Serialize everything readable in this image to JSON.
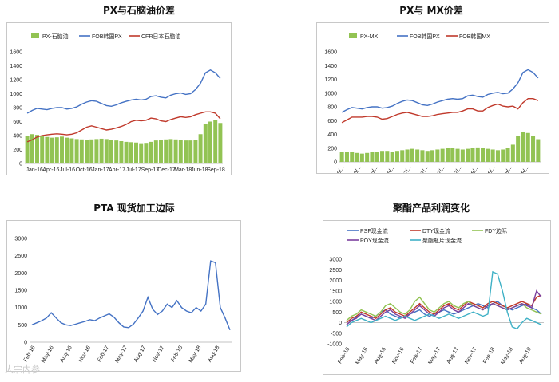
{
  "watermark": "大宗内参",
  "chart_data": [
    {
      "type": "line",
      "title": "PX与石脑油价差",
      "ylim": [
        0,
        1600
      ],
      "yticks": [
        0,
        200,
        400,
        600,
        800,
        1000,
        1200,
        1400,
        1600
      ],
      "xticks": [
        "Jan-16",
        "Apr-16",
        "Jul-16",
        "Oct-16",
        "Jan-17",
        "Apr-17",
        "Jul-17",
        "Sep-17",
        "Dec-17",
        "Mar-18",
        "Jun-18",
        "Sep-18"
      ],
      "legend": [
        "PX-石脑油",
        "FOB韩国PX",
        "CFR日本石脑油"
      ],
      "series": [
        {
          "name": "PX-石脑油",
          "kind": "bar",
          "color": "#92c353",
          "values": [
            400,
            420,
            410,
            390,
            380,
            370,
            375,
            385,
            370,
            360,
            350,
            345,
            340,
            345,
            350,
            355,
            350,
            340,
            330,
            320,
            310,
            305,
            300,
            290,
            295,
            310,
            330,
            340,
            345,
            350,
            345,
            340,
            330,
            330,
            340,
            420,
            560,
            600,
            620,
            580
          ]
        },
        {
          "name": "FOB韩国PX",
          "kind": "line",
          "color": "#4472c4",
          "values": [
            720,
            760,
            790,
            780,
            770,
            790,
            800,
            800,
            780,
            790,
            810,
            850,
            880,
            900,
            890,
            860,
            830,
            820,
            840,
            870,
            890,
            910,
            920,
            910,
            920,
            960,
            970,
            950,
            940,
            980,
            1000,
            1010,
            990,
            1000,
            1060,
            1150,
            1300,
            1340,
            1300,
            1220
          ]
        },
        {
          "name": "CFR日本石脑油",
          "kind": "line",
          "color": "#c0392b",
          "values": [
            310,
            340,
            380,
            400,
            410,
            420,
            425,
            420,
            410,
            420,
            440,
            480,
            520,
            540,
            520,
            500,
            480,
            490,
            510,
            530,
            560,
            600,
            620,
            610,
            620,
            650,
            640,
            610,
            600,
            630,
            650,
            670,
            660,
            670,
            700,
            720,
            740,
            740,
            720,
            640
          ]
        }
      ]
    },
    {
      "type": "line",
      "title": "PX与 MX价差",
      "ylim": [
        0,
        1600
      ],
      "yticks": [
        0,
        200,
        400,
        600,
        800,
        1000,
        1200,
        1400,
        1600
      ],
      "xticks": [
        "16/...",
        "16/...",
        "16/...",
        "16/...",
        "17/...",
        "17/...",
        "17/...",
        "17/...",
        "18/...",
        "18/...",
        "18/...",
        "18/..."
      ],
      "legend": [
        "PX-MX",
        "FOB韩国PX",
        "FOB韩国MX"
      ],
      "series": [
        {
          "name": "PX-MX",
          "kind": "bar",
          "color": "#92c353",
          "values": [
            150,
            150,
            140,
            130,
            120,
            130,
            140,
            150,
            160,
            160,
            150,
            160,
            170,
            180,
            190,
            180,
            170,
            160,
            170,
            180,
            190,
            200,
            200,
            190,
            180,
            190,
            200,
            210,
            200,
            190,
            180,
            170,
            180,
            200,
            250,
            380,
            440,
            420,
            380,
            330
          ]
        },
        {
          "name": "FOB韩国PX",
          "kind": "line",
          "color": "#4472c4",
          "values": [
            720,
            760,
            790,
            780,
            770,
            790,
            800,
            800,
            780,
            790,
            810,
            850,
            880,
            900,
            890,
            860,
            830,
            820,
            840,
            870,
            890,
            910,
            920,
            910,
            920,
            960,
            970,
            950,
            940,
            980,
            1000,
            1010,
            990,
            1000,
            1060,
            1150,
            1300,
            1340,
            1300,
            1220
          ]
        },
        {
          "name": "FOB韩国MX",
          "kind": "line",
          "color": "#c0392b",
          "values": [
            570,
            610,
            650,
            650,
            650,
            660,
            660,
            650,
            620,
            630,
            660,
            690,
            710,
            720,
            700,
            680,
            660,
            660,
            670,
            690,
            700,
            710,
            720,
            720,
            740,
            770,
            770,
            740,
            740,
            790,
            820,
            840,
            810,
            800,
            810,
            770,
            860,
            920,
            920,
            890
          ]
        }
      ]
    },
    {
      "type": "line",
      "title": "PTA 现货加工边际",
      "ylim": [
        0,
        3000
      ],
      "yticks": [
        0,
        500,
        1000,
        1500,
        2000,
        2500,
        3000
      ],
      "xticks": [
        "Feb-16",
        "May-16",
        "Aug-16",
        "Nov-16",
        "Feb-17",
        "May-17",
        "Aug-17",
        "Nov-17",
        "Feb-18",
        "May-18",
        "Aug-18"
      ],
      "legend": [],
      "series": [
        {
          "name": "",
          "kind": "line",
          "color": "#4472c4",
          "values": [
            500,
            560,
            620,
            700,
            850,
            700,
            560,
            500,
            480,
            520,
            560,
            600,
            650,
            620,
            700,
            760,
            820,
            720,
            560,
            440,
            420,
            520,
            700,
            900,
            1300,
            950,
            800,
            900,
            1100,
            1000,
            1200,
            1000,
            900,
            850,
            1000,
            900,
            1100,
            2350,
            2300,
            1000,
            700,
            350
          ]
        }
      ]
    },
    {
      "type": "line",
      "title": "聚酯产品利润变化",
      "ylim": [
        -1000,
        3000
      ],
      "yticks": [
        -1000,
        -500,
        0,
        500,
        1000,
        1500,
        2000,
        2500,
        3000
      ],
      "xticks": [
        "Feb-16",
        "May-16",
        "Aug-16",
        "Nov-16",
        "Feb-17",
        "May-17",
        "Aug-17",
        "Nov-17",
        "Feb-18",
        "May-18",
        "Aug-18"
      ],
      "legend": [
        "PSF现金流",
        "DTY现金流",
        "FDY边际",
        "POY现金流",
        "聚酯瓶片现金流"
      ],
      "series": [
        {
          "name": "PSF现金流",
          "kind": "line",
          "color": "#4472c4",
          "values": [
            50,
            100,
            250,
            400,
            300,
            200,
            300,
            500,
            600,
            400,
            300,
            200,
            300,
            400,
            500,
            600,
            400,
            300,
            400,
            500,
            600,
            500,
            400,
            500,
            600,
            700,
            800,
            900,
            800,
            700,
            900,
            1000,
            800,
            700,
            600,
            700,
            800,
            900,
            700,
            600,
            400
          ]
        },
        {
          "name": "DTY现金流",
          "kind": "line",
          "color": "#c0392b",
          "values": [
            0,
            200,
            300,
            500,
            400,
            300,
            200,
            400,
            600,
            700,
            500,
            400,
            300,
            500,
            700,
            900,
            700,
            500,
            400,
            600,
            800,
            900,
            700,
            600,
            800,
            1000,
            900,
            800,
            700,
            900,
            1000,
            900,
            800,
            700,
            800,
            900,
            1000,
            900,
            800,
            1200,
            1300
          ]
        },
        {
          "name": "FDY边际",
          "kind": "line",
          "color": "#92c353",
          "values": [
            100,
            300,
            400,
            600,
            500,
            400,
            300,
            500,
            800,
            900,
            700,
            500,
            400,
            600,
            1000,
            1200,
            900,
            600,
            500,
            700,
            900,
            1000,
            800,
            700,
            900,
            1000,
            800,
            700,
            600,
            800,
            900,
            800,
            700,
            600,
            700,
            800,
            900,
            700,
            600,
            500,
            400
          ]
        },
        {
          "name": "POY现金流",
          "kind": "line",
          "color": "#7b3f9e",
          "values": [
            -100,
            100,
            200,
            400,
            300,
            200,
            100,
            300,
            500,
            600,
            400,
            300,
            200,
            400,
            600,
            800,
            600,
            400,
            300,
            500,
            700,
            800,
            600,
            500,
            700,
            900,
            800,
            700,
            600,
            800,
            900,
            800,
            700,
            600,
            700,
            800,
            900,
            800,
            700,
            1500,
            1200
          ]
        },
        {
          "name": "聚酯瓶片现金流",
          "kind": "line",
          "color": "#3fb1c6",
          "values": [
            -200,
            0,
            100,
            200,
            100,
            0,
            100,
            200,
            300,
            200,
            100,
            200,
            300,
            200,
            100,
            200,
            300,
            400,
            300,
            200,
            300,
            400,
            300,
            200,
            300,
            400,
            500,
            400,
            300,
            400,
            2400,
            2300,
            1500,
            500,
            -200,
            -300,
            0,
            200,
            100,
            0,
            -100
          ]
        }
      ]
    }
  ]
}
